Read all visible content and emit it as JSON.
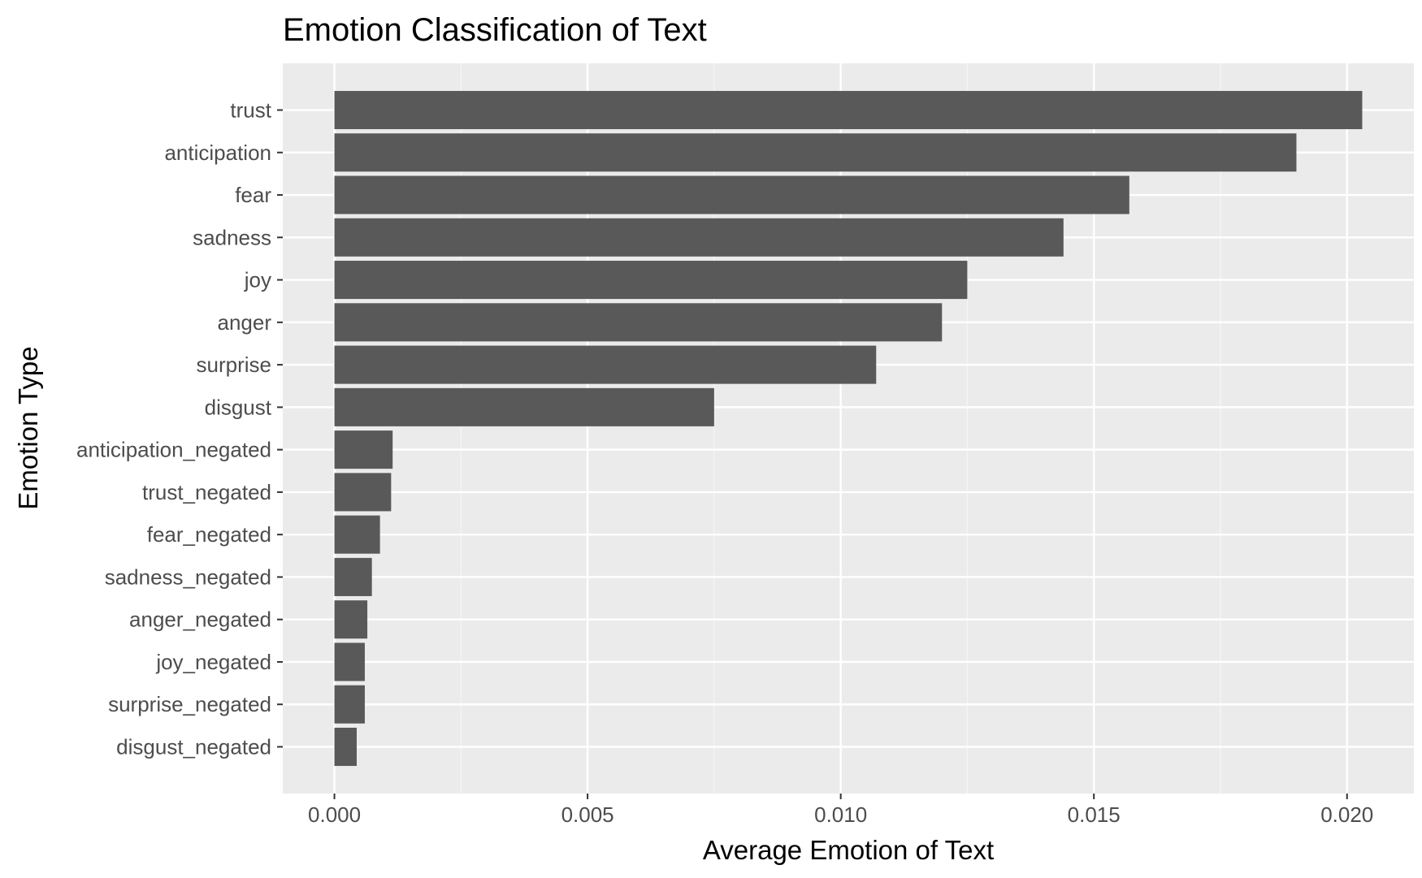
{
  "chart_data": {
    "type": "bar",
    "orientation": "horizontal",
    "title": "Emotion Classification of Text",
    "xlabel": "Average Emotion of Text",
    "ylabel": "Emotion Type",
    "categories": [
      "trust",
      "anticipation",
      "fear",
      "sadness",
      "joy",
      "anger",
      "surprise",
      "disgust",
      "anticipation_negated",
      "trust_negated",
      "fear_negated",
      "sadness_negated",
      "anger_negated",
      "joy_negated",
      "surprise_negated",
      "disgust_negated"
    ],
    "values": [
      0.0203,
      0.019,
      0.0157,
      0.0144,
      0.0125,
      0.012,
      0.0107,
      0.0075,
      0.00115,
      0.00112,
      0.0009,
      0.00074,
      0.00065,
      0.0006,
      0.0006,
      0.00044
    ],
    "xlim": [
      -0.00102,
      0.02132
    ],
    "xticks": [
      0.0,
      0.005,
      0.01,
      0.015,
      0.02
    ],
    "xtick_labels": [
      "0.000",
      "0.005",
      "0.010",
      "0.015",
      "0.020"
    ],
    "grid": true,
    "legend": "none",
    "colors": {
      "bar": "#595959",
      "panel_background": "#ebebeb",
      "grid_major": "#ffffff",
      "grid_minor": "#f5f5f5",
      "tick_text": "#4d4d4d",
      "tick_mark": "#333333"
    }
  }
}
